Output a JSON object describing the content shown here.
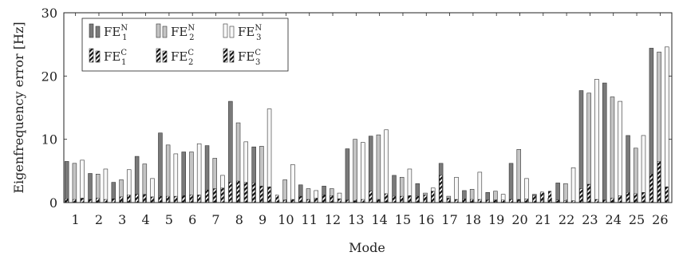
{
  "chart_data": {
    "type": "bar",
    "xlabel": "Mode",
    "ylabel": "Eigenfrequency error [Hz]",
    "ylim": [
      0,
      30
    ],
    "yticks": [
      0,
      10,
      20,
      30
    ],
    "categories": [
      "1",
      "2",
      "3",
      "4",
      "5",
      "6",
      "7",
      "8",
      "9",
      "10",
      "11",
      "12",
      "13",
      "14",
      "15",
      "16",
      "17",
      "18",
      "19",
      "20",
      "21",
      "22",
      "23",
      "24",
      "25",
      "26"
    ],
    "legend_position": "top-left",
    "grid": false,
    "series": [
      {
        "name": "FE1N",
        "label_base": "FE",
        "label_sub": "1",
        "label_sup": "N",
        "style": "solid",
        "color": "#7a7a7a",
        "values": [
          6.5,
          4.6,
          3.2,
          7.3,
          11.0,
          8.0,
          9.0,
          16.0,
          8.8,
          0.4,
          2.8,
          2.6,
          8.5,
          10.5,
          4.3,
          3.0,
          6.2,
          1.9,
          1.6,
          6.2,
          1.3,
          3.1,
          17.7,
          18.9,
          10.6,
          24.4
        ]
      },
      {
        "name": "FE2N",
        "label_base": "FE",
        "label_sub": "2",
        "label_sup": "N",
        "style": "solid",
        "color": "#c4c4c4",
        "values": [
          6.2,
          4.5,
          3.6,
          6.1,
          9.1,
          8.0,
          7.0,
          12.6,
          8.9,
          3.6,
          2.2,
          2.2,
          10.0,
          10.7,
          4.0,
          1.5,
          1.0,
          2.1,
          1.8,
          8.4,
          1.5,
          3.0,
          17.3,
          16.7,
          8.6,
          23.8
        ]
      },
      {
        "name": "FE3N",
        "label_base": "FE",
        "label_sub": "3",
        "label_sup": "N",
        "style": "solid",
        "color": "#f7f7f7",
        "values": [
          6.7,
          5.3,
          5.2,
          3.8,
          7.7,
          9.3,
          4.3,
          9.6,
          14.8,
          6.0,
          1.9,
          1.5,
          9.5,
          11.5,
          5.3,
          2.3,
          4.0,
          4.8,
          1.3,
          3.8,
          0.7,
          5.5,
          19.5,
          16.0,
          10.6,
          24.6
        ]
      },
      {
        "name": "FE1C",
        "label_base": "FE",
        "label_sub": "1",
        "label_sup": "C",
        "style": "hatched",
        "color": "#222222",
        "values": [
          0.6,
          0.5,
          0.6,
          1.3,
          1.0,
          1.1,
          2.0,
          3.2,
          3.1,
          1.2,
          1.0,
          1.2,
          0.4,
          1.8,
          1.0,
          1.0,
          4.3,
          0.6,
          0.4,
          0.5,
          1.1,
          0.4,
          2.2,
          0.4,
          1.6,
          4.5
        ]
      },
      {
        "name": "FE2C",
        "label_base": "FE",
        "label_sub": "2",
        "label_sup": "C",
        "style": "hatched",
        "color": "#222222",
        "values": [
          0.5,
          0.7,
          0.9,
          1.3,
          1.0,
          1.2,
          2.2,
          3.4,
          2.6,
          0.4,
          0.5,
          1.1,
          0.3,
          0.5,
          1.0,
          1.2,
          0.7,
          0.5,
          0.4,
          0.5,
          1.7,
          0.3,
          2.9,
          0.7,
          1.4,
          6.5
        ]
      },
      {
        "name": "FE3C",
        "label_base": "FE",
        "label_sub": "3",
        "label_sup": "C",
        "style": "hatched",
        "color": "#222222",
        "values": [
          0.7,
          0.5,
          1.2,
          0.9,
          1.0,
          1.2,
          2.3,
          3.2,
          2.5,
          0.5,
          0.7,
          0.6,
          0.5,
          1.4,
          1.1,
          1.8,
          0.5,
          0.5,
          0.4,
          0.6,
          1.8,
          0.3,
          0.5,
          1.1,
          1.6,
          2.5
        ]
      }
    ]
  }
}
